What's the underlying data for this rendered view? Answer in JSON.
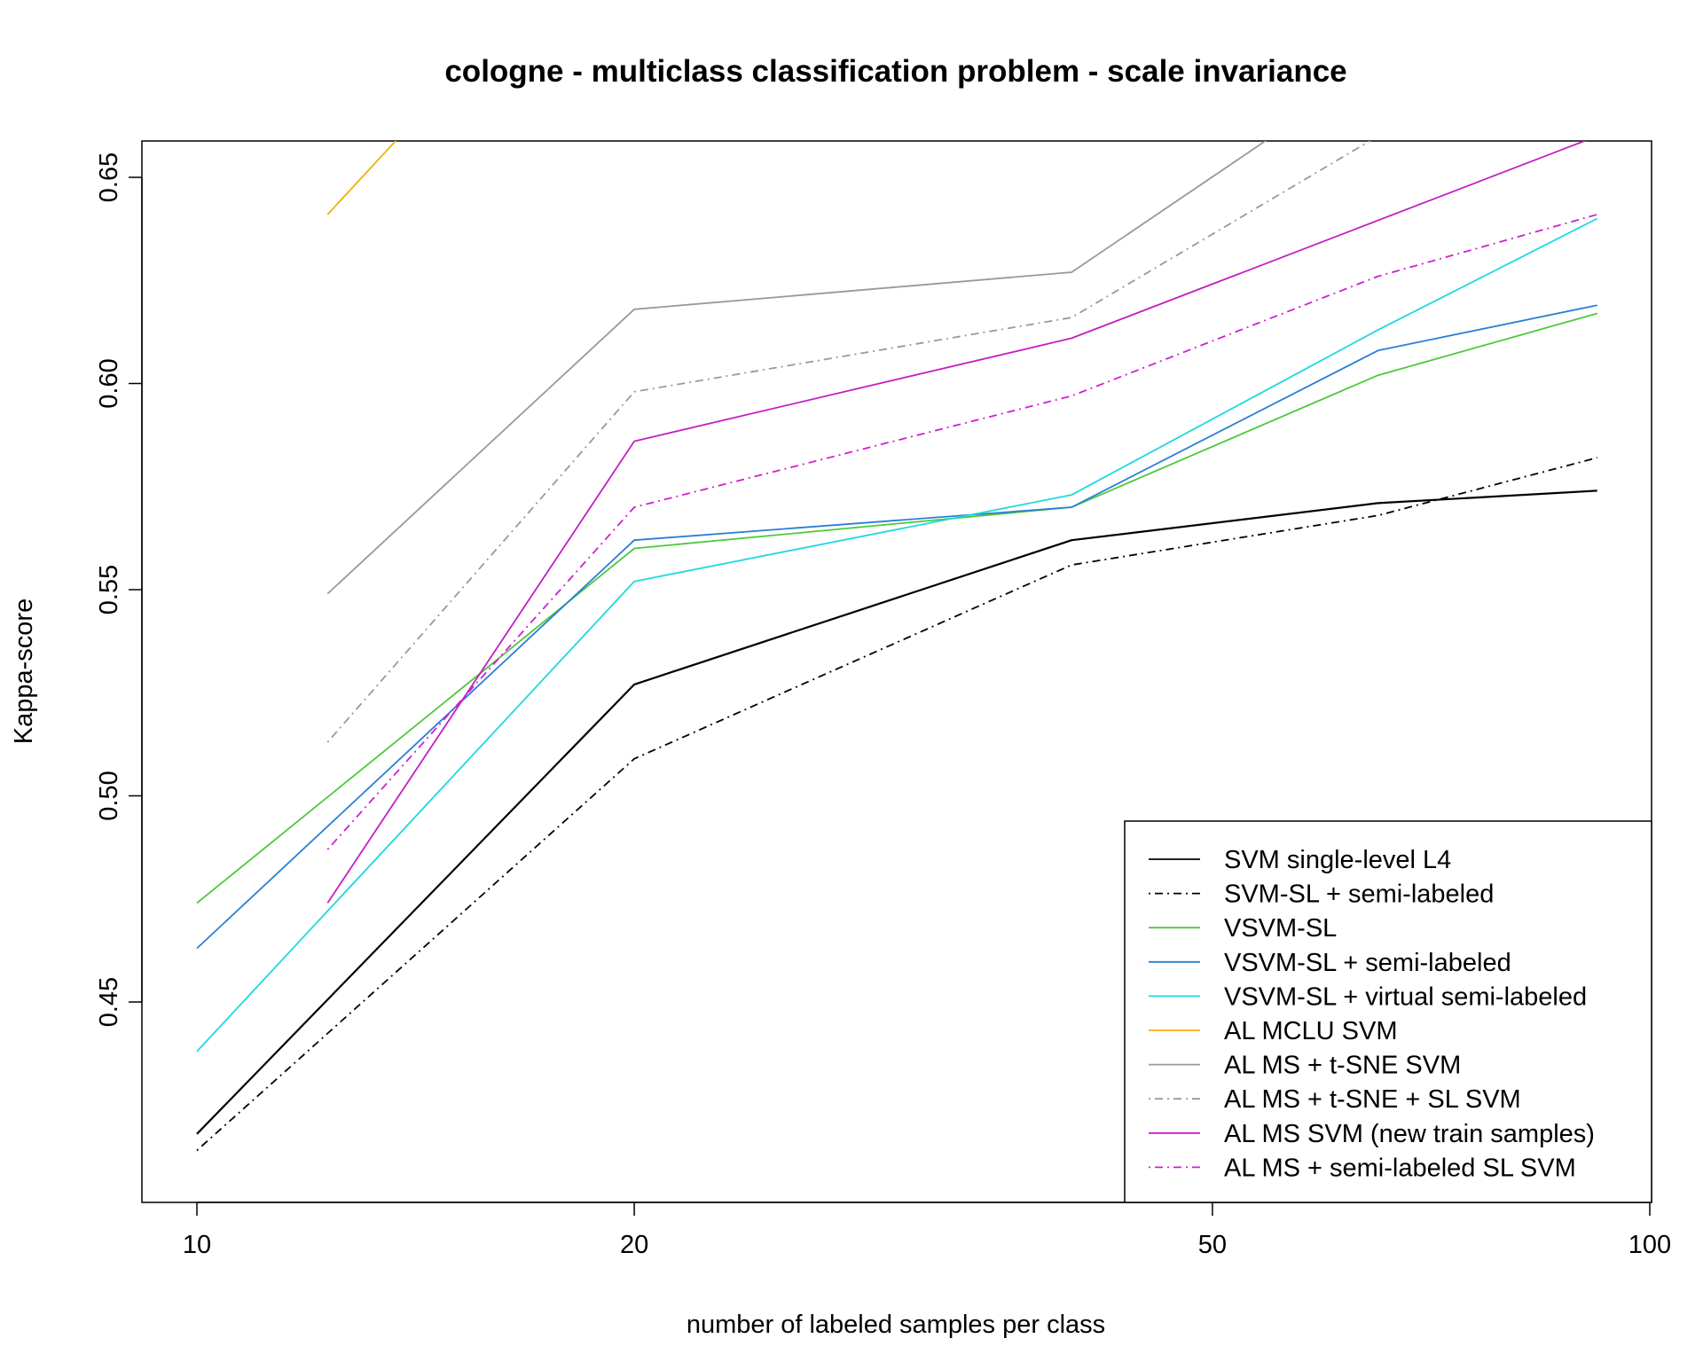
{
  "chart_data": {
    "type": "line",
    "title": "cologne - multiclass classification problem - scale invariance",
    "xlabel": "number of labeled samples per class",
    "ylabel": "Kappa-score",
    "x_scale": "log",
    "xlim": [
      10,
      100
    ],
    "ylim": [
      0.4,
      0.66
    ],
    "x_ticks": [
      10,
      20,
      50,
      100
    ],
    "y_ticks": [
      0.45,
      0.5,
      0.55,
      0.6,
      0.65
    ],
    "x_tick_labels": [
      "10",
      "20",
      "50",
      "100"
    ],
    "y_tick_labels": [
      "0.45",
      "0.50",
      "0.55",
      "0.60",
      "0.65"
    ],
    "legend_position": "bottom-right",
    "grid": false,
    "series": [
      {
        "name": "SVM single-level L4",
        "color": "#000000",
        "dash": "solid",
        "points": [
          [
            10,
            0.418
          ],
          [
            20,
            0.527
          ],
          [
            40,
            0.562
          ],
          [
            65,
            0.571
          ],
          [
            92,
            0.574
          ]
        ]
      },
      {
        "name": "SVM-SL + semi-labeled",
        "color": "#000000",
        "dash": "dotdash",
        "points": [
          [
            10,
            0.414
          ],
          [
            20,
            0.509
          ],
          [
            40,
            0.556
          ],
          [
            65,
            0.568
          ],
          [
            92,
            0.582
          ]
        ]
      },
      {
        "name": "VSVM-SL",
        "color": "#4dc93b",
        "dash": "solid",
        "points": [
          [
            10,
            0.474
          ],
          [
            20,
            0.56
          ],
          [
            40,
            0.57
          ],
          [
            65,
            0.602
          ],
          [
            92,
            0.617
          ]
        ]
      },
      {
        "name": "VSVM-SL + semi-labeled",
        "color": "#2a7fd6",
        "dash": "solid",
        "points": [
          [
            10,
            0.463
          ],
          [
            20,
            0.562
          ],
          [
            40,
            0.57
          ],
          [
            65,
            0.608
          ],
          [
            92,
            0.619
          ]
        ]
      },
      {
        "name": "VSVM-SL + virtual semi-labeled",
        "color": "#1fd8e0",
        "dash": "solid",
        "points": [
          [
            10,
            0.438
          ],
          [
            20,
            0.552
          ],
          [
            40,
            0.573
          ],
          [
            65,
            0.613
          ],
          [
            92,
            0.64
          ]
        ]
      },
      {
        "name": "AL MCLU SVM",
        "color": "#efb20a",
        "dash": "solid",
        "points": [
          [
            12.3,
            0.641
          ],
          [
            13.8,
            0.66
          ]
        ]
      },
      {
        "name": "AL MS + t-SNE SVM",
        "color": "#999999",
        "dash": "solid",
        "points": [
          [
            12.3,
            0.549
          ],
          [
            20,
            0.618
          ],
          [
            40,
            0.627
          ],
          [
            55,
            0.66
          ]
        ]
      },
      {
        "name": "AL MS + t-SNE + SL SVM",
        "color": "#999999",
        "dash": "dotdash",
        "points": [
          [
            12.3,
            0.513
          ],
          [
            20,
            0.598
          ],
          [
            40,
            0.616
          ],
          [
            65,
            0.66
          ]
        ]
      },
      {
        "name": "AL MS SVM (new train samples)",
        "color": "#c21fc2",
        "dash": "solid",
        "points": [
          [
            12.3,
            0.474
          ],
          [
            20,
            0.586
          ],
          [
            40,
            0.611
          ],
          [
            92,
            0.66
          ]
        ]
      },
      {
        "name": "AL MS + semi-labeled SL SVM",
        "color": "#d01fd0",
        "dash": "dotdash",
        "points": [
          [
            12.3,
            0.487
          ],
          [
            20,
            0.57
          ],
          [
            40,
            0.597
          ],
          [
            65,
            0.626
          ],
          [
            92,
            0.641
          ]
        ]
      }
    ]
  }
}
